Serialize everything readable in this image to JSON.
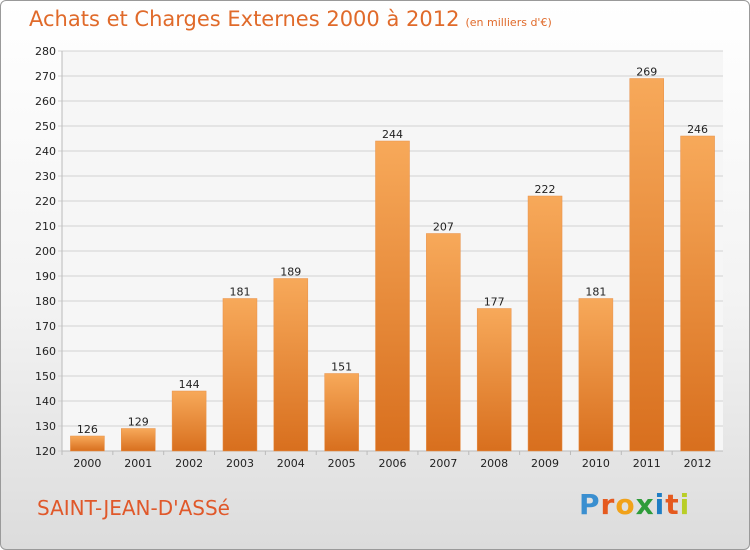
{
  "header": {
    "title": "Achats et Charges Externes 2000 à 2012",
    "subtitle": "(en milliers d'€)"
  },
  "footer": {
    "city": "SAINT-JEAN-D'ASSé",
    "logo": {
      "letters": [
        "P",
        "r",
        "o",
        "x",
        "i",
        "t",
        "i"
      ],
      "colors": [
        "#3a8fd0",
        "#e55a1f",
        "#f1a21a",
        "#2e9c3a",
        "#1f7dc4",
        "#e55a1f",
        "#b9ce27"
      ]
    }
  },
  "colors": {
    "bar_light": "#f7a95a",
    "bar_dark": "#d86f1e",
    "grid": "#d2d2d2",
    "axis_text": "#222222"
  },
  "chart_data": {
    "type": "bar",
    "title": "Achats et Charges Externes 2000 à 2012",
    "categories": [
      "2000",
      "2001",
      "2002",
      "2003",
      "2004",
      "2005",
      "2006",
      "2007",
      "2008",
      "2009",
      "2010",
      "2011",
      "2012"
    ],
    "values": [
      126,
      129,
      144,
      181,
      189,
      151,
      244,
      207,
      177,
      222,
      181,
      269,
      246
    ],
    "ylim": [
      120,
      280
    ],
    "ytick_step": 10,
    "grid": true,
    "data_labels": true,
    "xlabel": "",
    "ylabel": ""
  }
}
